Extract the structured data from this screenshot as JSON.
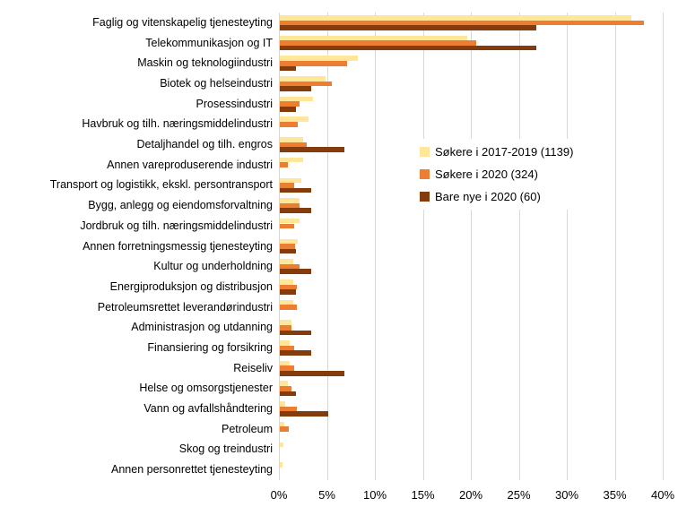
{
  "chart_data": {
    "type": "bar",
    "orientation": "horizontal",
    "title": "",
    "xlabel": "",
    "ylabel": "",
    "grid": true,
    "gridline_color": "#d9d9d9",
    "legend_position": "middle-right",
    "categories": [
      "Faglig og vitenskapelig tjenesteyting",
      "Telekommunikasjon og IT",
      "Maskin og teknologiindustri",
      "Biotek og helseindustri",
      "Prosessindustri",
      "Havbruk og tilh. næringsmiddelindustri",
      "Detaljhandel og tilh. engros",
      "Annen vareproduserende industri",
      "Transport og logistikk, ekskl. persontransport",
      "Bygg, anlegg og eiendomsforvaltning",
      "Jordbruk og tilh. næringsmiddelindustri",
      "Annen forretningsmessig tjenesteyting",
      "Kultur og underholdning",
      "Energiproduksjon og distribusjon",
      "Petroleumsrettet leverandørindustri",
      "Administrasjon og utdanning",
      "Finansiering og forsikring",
      "Reiseliv",
      "Helse og omsorgstjenester",
      "Vann og avfallshåndtering",
      "Petroleum",
      "Skog og treindustri",
      "Annen personrettet tjenesteyting"
    ],
    "series": [
      {
        "name": "Søkere i 2017-2019 (1139)",
        "color": "#FFE699",
        "values": [
          36.6,
          19.5,
          8.1,
          4.8,
          3.5,
          3.0,
          2.4,
          2.4,
          2.2,
          2.1,
          2.1,
          1.9,
          1.4,
          1.4,
          1.4,
          1.2,
          1.0,
          1.0,
          0.8,
          0.6,
          0.5,
          0.4,
          0.3
        ]
      },
      {
        "name": "Søkere i 2020 (324)",
        "color": "#ED7D31",
        "values": [
          37.9,
          20.5,
          7.0,
          5.4,
          2.1,
          1.9,
          2.8,
          0.8,
          1.5,
          2.1,
          1.5,
          1.6,
          2.1,
          1.8,
          1.8,
          1.2,
          1.5,
          1.5,
          1.2,
          1.8,
          0.9,
          0,
          0
        ]
      },
      {
        "name": "Bare nye i 2020 (60)",
        "color": "#843C0C",
        "values": [
          26.7,
          26.7,
          1.7,
          3.3,
          1.7,
          0,
          6.7,
          0,
          3.3,
          3.3,
          0,
          1.7,
          3.3,
          1.7,
          0,
          3.3,
          3.3,
          6.7,
          1.7,
          5.0,
          0,
          0,
          0
        ]
      }
    ],
    "x_axis": {
      "min": 0,
      "max": 40,
      "step": 5,
      "tick_values": [
        0,
        5,
        10,
        15,
        20,
        25,
        30,
        35,
        40
      ],
      "tick_labels": [
        "0%",
        "5%",
        "10%",
        "15%",
        "20%",
        "25%",
        "30%",
        "35%",
        "40%"
      ]
    }
  }
}
